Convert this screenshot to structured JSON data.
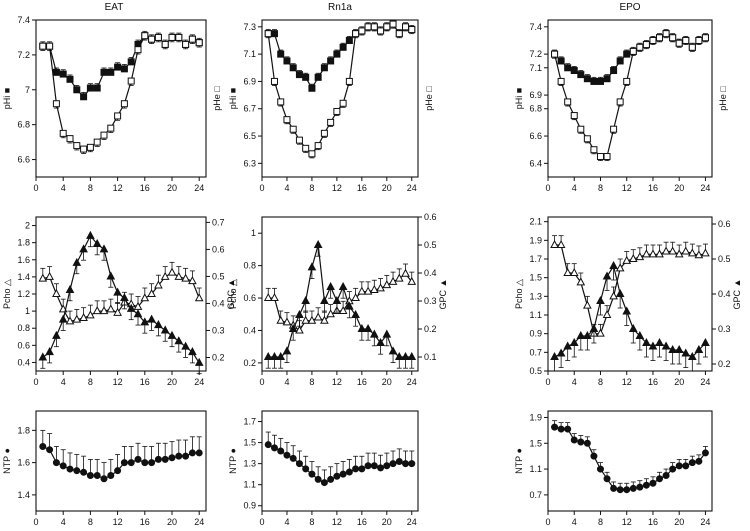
{
  "column_titles": [
    "EAT",
    "Rn1a",
    "EPO"
  ],
  "chart_data": [
    {
      "type": "line",
      "title": "EAT",
      "ylabel": "pHi ■",
      "ylabel_right": "pHe □",
      "xlim": [
        0,
        25
      ],
      "xticks": [
        0,
        4,
        8,
        12,
        16,
        20,
        24
      ],
      "ylim": [
        6.5,
        7.4
      ],
      "yticks": [
        6.6,
        6.8,
        7.0,
        7.2,
        7.4
      ],
      "series": [
        {
          "marker": "filled-square",
          "x": [
            1,
            2,
            3,
            4,
            5,
            6,
            7,
            8,
            9,
            10,
            11,
            12,
            13,
            14,
            15,
            16,
            17,
            18,
            19,
            20,
            21,
            22,
            23,
            24
          ],
          "y": [
            7.25,
            7.25,
            7.1,
            7.09,
            7.06,
            7.0,
            6.96,
            7.01,
            7.01,
            7.1,
            7.1,
            7.13,
            7.12,
            7.16,
            7.26,
            7.31,
            7.29,
            7.3,
            7.26,
            7.3,
            7.3,
            7.26,
            7.29,
            7.27
          ],
          "err": 0.025
        },
        {
          "marker": "open-square",
          "x": [
            1,
            2,
            3,
            4,
            5,
            6,
            7,
            8,
            9,
            10,
            11,
            12,
            13,
            14,
            15,
            16,
            17,
            18,
            19,
            20,
            21,
            22,
            23,
            24
          ],
          "y": [
            7.25,
            7.25,
            6.92,
            6.75,
            6.72,
            6.68,
            6.66,
            6.67,
            6.7,
            6.74,
            6.78,
            6.85,
            6.92,
            7.05,
            7.23,
            7.31,
            7.29,
            7.3,
            7.26,
            7.3,
            7.3,
            7.26,
            7.29,
            7.27
          ],
          "err": 0.025
        }
      ]
    },
    {
      "type": "line",
      "title": "Rn1a",
      "ylabel": "pHi ■",
      "ylabel_right": "pHe □",
      "xlim": [
        0,
        25
      ],
      "xticks": [
        0,
        4,
        8,
        12,
        16,
        20,
        24
      ],
      "ylim": [
        6.2,
        7.35
      ],
      "yticks": [
        6.3,
        6.5,
        6.7,
        6.9,
        7.1,
        7.3
      ],
      "series": [
        {
          "marker": "filled-square",
          "x": [
            1,
            2,
            3,
            4,
            5,
            6,
            7,
            8,
            9,
            10,
            11,
            12,
            13,
            14,
            15,
            16,
            17,
            18,
            19,
            20,
            21,
            22,
            23,
            24
          ],
          "y": [
            7.25,
            7.25,
            7.1,
            7.05,
            7.0,
            6.95,
            6.93,
            6.85,
            6.93,
            7.0,
            7.05,
            7.1,
            7.15,
            7.2,
            7.25,
            7.27,
            7.3,
            7.3,
            7.27,
            7.3,
            7.32,
            7.25,
            7.3,
            7.28
          ],
          "err": 0.03
        },
        {
          "marker": "open-square",
          "x": [
            1,
            2,
            3,
            4,
            5,
            6,
            7,
            8,
            9,
            10,
            11,
            12,
            13,
            14,
            15,
            16,
            17,
            18,
            19,
            20,
            21,
            22,
            23,
            24
          ],
          "y": [
            7.25,
            6.9,
            6.75,
            6.62,
            6.55,
            6.47,
            6.41,
            6.37,
            6.43,
            6.52,
            6.6,
            6.68,
            6.74,
            6.9,
            7.25,
            7.27,
            7.3,
            7.3,
            7.27,
            7.3,
            7.32,
            7.25,
            7.3,
            7.28
          ],
          "err": 0.03
        }
      ]
    },
    {
      "type": "line",
      "title": "EPO",
      "ylabel": "pHi ■",
      "ylabel_right": "pHe □",
      "xlim": [
        0,
        25
      ],
      "xticks": [
        0,
        4,
        8,
        12,
        16,
        20,
        24
      ],
      "ylim": [
        6.3,
        7.45
      ],
      "yticks": [
        6.4,
        6.6,
        6.8,
        6.9,
        7.1,
        7.2,
        7.4
      ],
      "ytick_labels": [
        "6.4",
        "6.6",
        "6.8",
        "6.9",
        "7.1",
        "7.2",
        "7.4"
      ],
      "series": [
        {
          "marker": "filled-square",
          "x": [
            1,
            2,
            3,
            4,
            5,
            6,
            7,
            8,
            9,
            10,
            11,
            12,
            13,
            14,
            15,
            16,
            17,
            18,
            19,
            20,
            21,
            22,
            23,
            24
          ],
          "y": [
            7.2,
            7.15,
            7.1,
            7.08,
            7.05,
            7.02,
            7.0,
            7.0,
            7.02,
            7.08,
            7.15,
            7.2,
            7.22,
            7.25,
            7.27,
            7.3,
            7.32,
            7.35,
            7.32,
            7.28,
            7.3,
            7.25,
            7.3,
            7.32
          ],
          "err": 0.03
        },
        {
          "marker": "open-square",
          "x": [
            1,
            2,
            3,
            4,
            5,
            6,
            7,
            8,
            9,
            10,
            11,
            12,
            13,
            14,
            15,
            16,
            17,
            18,
            19,
            20,
            21,
            22,
            23,
            24
          ],
          "y": [
            7.2,
            7.0,
            6.85,
            6.75,
            6.65,
            6.58,
            6.5,
            6.45,
            6.45,
            6.65,
            6.85,
            7.0,
            7.22,
            7.25,
            7.27,
            7.3,
            7.32,
            7.35,
            7.32,
            7.28,
            7.3,
            7.25,
            7.3,
            7.32
          ],
          "err": 0.03
        }
      ]
    },
    {
      "type": "line",
      "title": "EAT",
      "ylabel": "Pcho △",
      "ylabel_right": "GPC ▲",
      "xlim": [
        0,
        25
      ],
      "xticks": [
        0,
        4,
        8,
        12,
        16,
        20,
        24
      ],
      "ylim": [
        0.3,
        2.1
      ],
      "yticks": [
        0.4,
        0.6,
        0.8,
        1.0,
        1.2,
        1.4,
        1.6,
        1.8,
        2.0
      ],
      "ylim_right": [
        0.15,
        0.72
      ],
      "yticks_right": [
        0.2,
        0.3,
        0.4,
        0.5,
        0.6,
        0.7
      ],
      "series": [
        {
          "marker": "open-triangle",
          "axis": "left",
          "x": [
            1,
            2,
            3,
            4,
            5,
            6,
            7,
            8,
            9,
            10,
            11,
            12,
            13,
            14,
            15,
            16,
            17,
            18,
            19,
            20,
            21,
            22,
            23,
            24
          ],
          "y": [
            1.38,
            1.4,
            1.2,
            1.02,
            0.88,
            0.9,
            0.92,
            0.95,
            1.0,
            1.0,
            1.02,
            0.98,
            1.1,
            1.08,
            1.05,
            1.15,
            1.2,
            1.3,
            1.4,
            1.45,
            1.4,
            1.38,
            1.35,
            1.15
          ],
          "err": 0.12
        },
        {
          "marker": "filled-triangle",
          "axis": "right",
          "x": [
            1,
            2,
            3,
            4,
            5,
            6,
            7,
            8,
            9,
            10,
            11,
            12,
            13,
            14,
            15,
            16,
            17,
            18,
            19,
            20,
            21,
            22,
            23,
            24
          ],
          "y": [
            0.2,
            0.22,
            0.28,
            0.34,
            0.45,
            0.55,
            0.6,
            0.65,
            0.62,
            0.6,
            0.5,
            0.44,
            0.42,
            0.38,
            0.36,
            0.33,
            0.34,
            0.32,
            0.3,
            0.28,
            0.26,
            0.24,
            0.22,
            0.18
          ],
          "err": 0.04
        }
      ]
    },
    {
      "type": "line",
      "title": "Rn1a",
      "ylabel": "Pcho △",
      "ylabel_right": "GPC ▲",
      "xlim": [
        0,
        25
      ],
      "xticks": [
        0,
        4,
        8,
        12,
        16,
        20,
        24
      ],
      "ylim": [
        0.15,
        1.1
      ],
      "yticks": [
        0.2,
        0.4,
        0.6,
        0.8,
        1.0
      ],
      "ylim_right": [
        0.05,
        0.6
      ],
      "yticks_right": [
        0.1,
        0.2,
        0.3,
        0.4,
        0.5,
        0.6
      ],
      "series": [
        {
          "marker": "open-triangle",
          "axis": "left",
          "x": [
            1,
            2,
            3,
            4,
            5,
            6,
            7,
            8,
            9,
            10,
            11,
            12,
            13,
            14,
            15,
            16,
            17,
            18,
            19,
            20,
            21,
            22,
            23,
            24
          ],
          "y": [
            0.6,
            0.6,
            0.46,
            0.45,
            0.43,
            0.4,
            0.46,
            0.46,
            0.48,
            0.46,
            0.5,
            0.52,
            0.52,
            0.58,
            0.6,
            0.64,
            0.64,
            0.65,
            0.66,
            0.68,
            0.7,
            0.72,
            0.75,
            0.7
          ],
          "err": 0.06
        },
        {
          "marker": "filled-triangle",
          "axis": "right",
          "x": [
            1,
            2,
            3,
            4,
            5,
            6,
            7,
            8,
            9,
            10,
            11,
            12,
            13,
            14,
            15,
            16,
            17,
            18,
            19,
            20,
            21,
            22,
            23,
            24
          ],
          "y": [
            0.1,
            0.1,
            0.1,
            0.12,
            0.2,
            0.25,
            0.3,
            0.42,
            0.5,
            0.3,
            0.35,
            0.3,
            0.35,
            0.28,
            0.25,
            0.2,
            0.2,
            0.18,
            0.15,
            0.18,
            0.12,
            0.1,
            0.1,
            0.1
          ],
          "err": 0.04
        }
      ]
    },
    {
      "type": "line",
      "title": "EPO",
      "ylabel": "Pcho △",
      "ylabel_right": "GPC ▲",
      "xlim": [
        0,
        25
      ],
      "xticks": [
        0,
        4,
        8,
        12,
        16,
        20,
        24
      ],
      "ylim": [
        0.5,
        2.15
      ],
      "yticks": [
        0.5,
        0.7,
        0.9,
        1.1,
        1.3,
        1.5,
        1.7,
        1.9,
        2.1
      ],
      "ylim_right": [
        0.18,
        0.62
      ],
      "yticks_right": [
        0.2,
        0.3,
        0.4,
        0.5,
        0.6
      ],
      "series": [
        {
          "marker": "open-triangle",
          "axis": "left",
          "x": [
            1,
            2,
            3,
            4,
            5,
            6,
            7,
            8,
            9,
            10,
            11,
            12,
            13,
            14,
            15,
            16,
            17,
            18,
            19,
            20,
            21,
            22,
            23,
            24
          ],
          "y": [
            1.85,
            1.85,
            1.55,
            1.55,
            1.45,
            1.2,
            0.9,
            0.9,
            1.1,
            1.3,
            1.6,
            1.68,
            1.7,
            1.72,
            1.75,
            1.75,
            1.75,
            1.78,
            1.78,
            1.75,
            1.78,
            1.76,
            1.74,
            1.76
          ],
          "err": 0.1
        },
        {
          "marker": "filled-triangle",
          "axis": "right",
          "x": [
            1,
            2,
            3,
            4,
            5,
            6,
            7,
            8,
            9,
            10,
            11,
            12,
            13,
            14,
            15,
            16,
            17,
            18,
            19,
            20,
            21,
            22,
            23,
            24
          ],
          "y": [
            0.22,
            0.23,
            0.25,
            0.26,
            0.28,
            0.28,
            0.3,
            0.38,
            0.45,
            0.48,
            0.4,
            0.35,
            0.3,
            0.28,
            0.26,
            0.25,
            0.26,
            0.25,
            0.24,
            0.24,
            0.23,
            0.22,
            0.24,
            0.26
          ],
          "err": 0.04
        }
      ]
    },
    {
      "type": "line",
      "title": "EAT",
      "ylabel": "NTP ●",
      "xlim": [
        0,
        25
      ],
      "xticks": [
        0,
        4,
        8,
        12,
        16,
        20,
        24
      ],
      "ylim": [
        1.3,
        1.92
      ],
      "yticks": [
        1.4,
        1.6,
        1.8
      ],
      "series": [
        {
          "marker": "filled-circle",
          "x": [
            1,
            2,
            3,
            4,
            5,
            6,
            7,
            8,
            9,
            10,
            11,
            12,
            13,
            14,
            15,
            16,
            17,
            18,
            19,
            20,
            21,
            22,
            23,
            24
          ],
          "y": [
            1.7,
            1.68,
            1.6,
            1.58,
            1.56,
            1.55,
            1.54,
            1.52,
            1.52,
            1.5,
            1.52,
            1.55,
            1.6,
            1.6,
            1.62,
            1.6,
            1.6,
            1.62,
            1.62,
            1.63,
            1.64,
            1.64,
            1.66,
            1.66
          ],
          "err": 0.1
        }
      ]
    },
    {
      "type": "line",
      "title": "Rn1a",
      "ylabel": "NTP ●",
      "xlim": [
        0,
        25
      ],
      "xticks": [
        0,
        4,
        8,
        12,
        16,
        20,
        24
      ],
      "ylim": [
        0.85,
        1.8
      ],
      "yticks": [
        0.9,
        1.1,
        1.3,
        1.5,
        1.7
      ],
      "series": [
        {
          "marker": "filled-circle",
          "x": [
            1,
            2,
            3,
            4,
            5,
            6,
            7,
            8,
            9,
            10,
            11,
            12,
            13,
            14,
            15,
            16,
            17,
            18,
            19,
            20,
            21,
            22,
            23,
            24
          ],
          "y": [
            1.48,
            1.45,
            1.42,
            1.38,
            1.35,
            1.3,
            1.25,
            1.2,
            1.15,
            1.12,
            1.15,
            1.18,
            1.2,
            1.22,
            1.25,
            1.25,
            1.28,
            1.28,
            1.26,
            1.28,
            1.3,
            1.32,
            1.3,
            1.3
          ],
          "err": 0.12
        }
      ]
    },
    {
      "type": "line",
      "title": "EPO",
      "ylabel": "NTP ●",
      "xlim": [
        0,
        25
      ],
      "xticks": [
        0,
        4,
        8,
        12,
        16,
        20,
        24
      ],
      "ylim": [
        0.45,
        2.0
      ],
      "yticks": [
        0.7,
        1.1,
        1.5,
        1.9
      ],
      "series": [
        {
          "marker": "filled-circle",
          "x": [
            1,
            2,
            3,
            4,
            5,
            6,
            7,
            8,
            9,
            10,
            11,
            12,
            13,
            14,
            15,
            16,
            17,
            18,
            19,
            20,
            21,
            22,
            23,
            24
          ],
          "y": [
            1.75,
            1.72,
            1.72,
            1.55,
            1.52,
            1.5,
            1.3,
            1.1,
            0.95,
            0.8,
            0.78,
            0.78,
            0.8,
            0.82,
            0.85,
            0.88,
            0.95,
            1.0,
            1.1,
            1.15,
            1.15,
            1.2,
            1.22,
            1.35
          ],
          "err": 0.1
        }
      ]
    }
  ]
}
